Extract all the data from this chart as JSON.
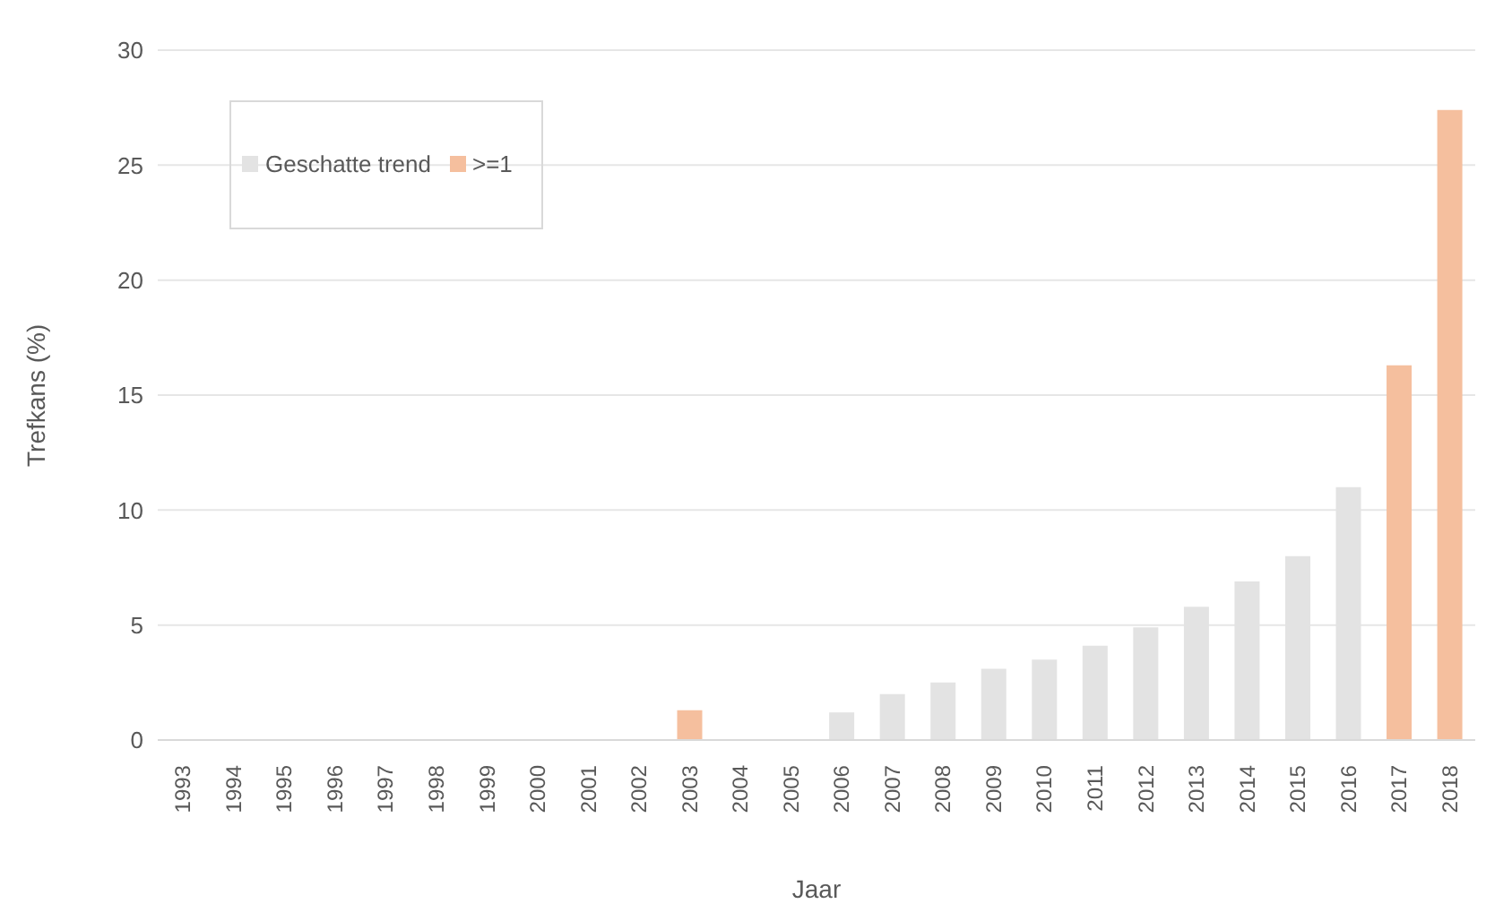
{
  "chart_data": {
    "type": "bar",
    "stacked": true,
    "xlabel": "Jaar",
    "ylabel": "Trefkans (%)",
    "categories": [
      "1993",
      "1994",
      "1995",
      "1996",
      "1997",
      "1998",
      "1999",
      "2000",
      "2001",
      "2002",
      "2003",
      "2004",
      "2005",
      "2006",
      "2007",
      "2008",
      "2009",
      "2010",
      "2011",
      "2012",
      "2013",
      "2014",
      "2015",
      "2016",
      "2017",
      "2018"
    ],
    "series": [
      {
        "name": "Geschatte trend",
        "color": "#e3e3e3",
        "values": [
          null,
          null,
          null,
          null,
          null,
          null,
          null,
          null,
          null,
          null,
          null,
          null,
          null,
          1.2,
          2.0,
          2.5,
          3.1,
          3.5,
          4.1,
          4.9,
          5.8,
          6.9,
          8.0,
          11.0,
          null,
          null
        ]
      },
      {
        "name": ">=1",
        "color": "#f5bf9e",
        "values": [
          null,
          null,
          null,
          null,
          null,
          null,
          null,
          null,
          null,
          null,
          1.3,
          null,
          null,
          null,
          null,
          null,
          null,
          null,
          null,
          null,
          null,
          null,
          null,
          null,
          16.3,
          27.4
        ]
      }
    ],
    "ylim": [
      0,
      30
    ],
    "yticks": [
      0,
      5,
      10,
      15,
      20,
      25,
      30
    ],
    "grid": "y",
    "legend": "top left"
  }
}
